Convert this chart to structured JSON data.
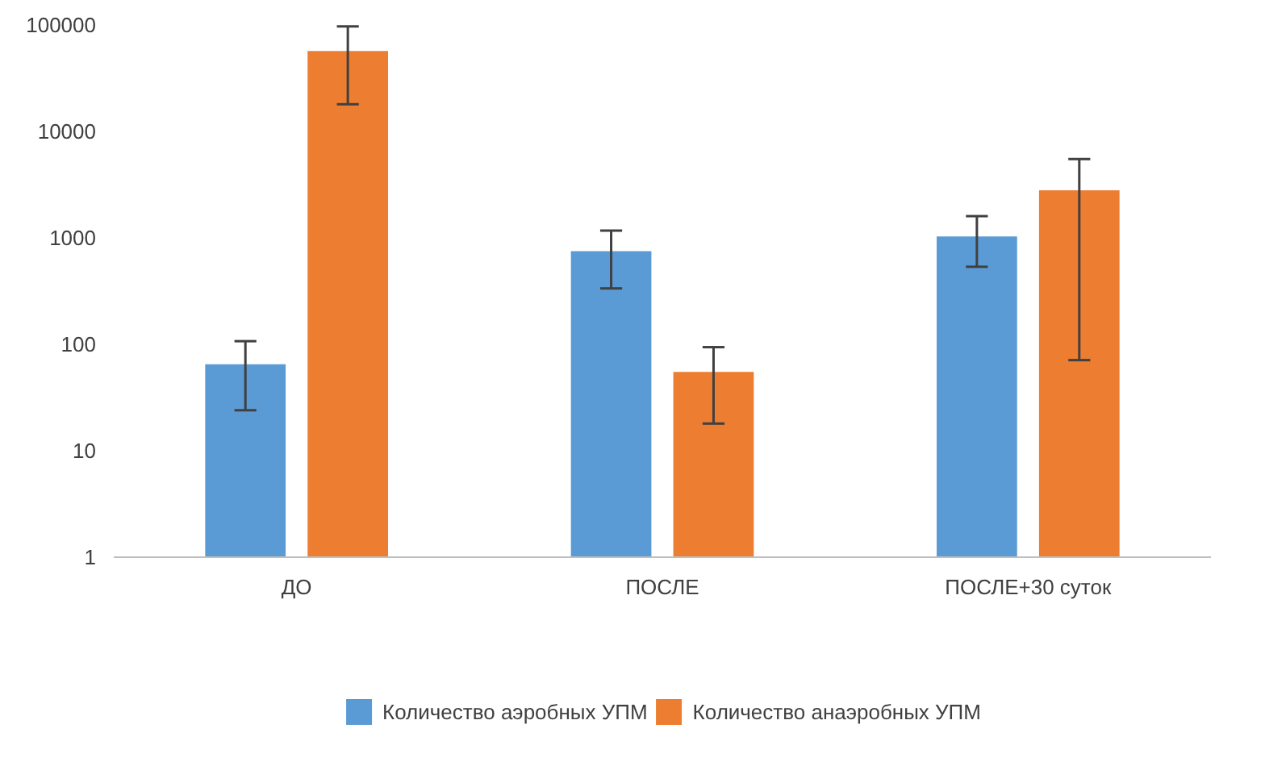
{
  "chart_data": {
    "type": "bar",
    "categories": [
      "ДО",
      "ПОСЛЕ",
      "ПОСЛЕ+30 суток"
    ],
    "series": [
      {
        "name": "Количество аэробных УПМ",
        "color": "#5b9bd5",
        "values": [
          65,
          750,
          1030
        ],
        "errors": [
          [
            24,
            107
          ],
          [
            335,
            1170
          ],
          [
            535,
            1600
          ]
        ]
      },
      {
        "name": "Количество анаэробных УПМ",
        "color": "#ed7d31",
        "values": [
          57000,
          55,
          2800
        ],
        "errors": [
          [
            18000,
            97000
          ],
          [
            18,
            94
          ],
          [
            71,
            5500
          ]
        ]
      }
    ],
    "log": true,
    "ylim": [
      1,
      100000
    ],
    "yticks": [
      1,
      10,
      100,
      1000,
      10000,
      100000
    ],
    "grid": false,
    "legend": "bottom"
  }
}
